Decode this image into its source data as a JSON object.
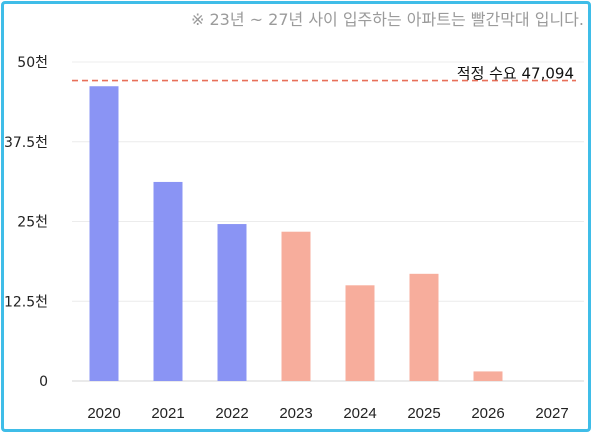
{
  "note": "※ 23년 ~ 27년 사이 입주하는 아파트는 빨간막대 입니다.",
  "chart_data": {
    "type": "bar",
    "categories": [
      "2020",
      "2021",
      "2022",
      "2023",
      "2024",
      "2025",
      "2026",
      "2027"
    ],
    "values": [
      46200,
      31200,
      24600,
      23400,
      15000,
      16800,
      1500,
      0
    ],
    "colors": [
      "#8a94f4",
      "#8a94f4",
      "#8a94f4",
      "#f7ad9c",
      "#f7ad9c",
      "#f7ad9c",
      "#f7ad9c",
      "#f7ad9c"
    ],
    "ylim": [
      0,
      50000
    ],
    "yticks": [
      0,
      12500,
      25000,
      37500,
      50000
    ],
    "ytick_labels": [
      "0",
      "12.5천",
      "25천",
      "37.5천",
      "50천"
    ],
    "grid": true,
    "reference_line": {
      "value": 47094,
      "label": "적정 수요 47,094",
      "color": "#e8705a"
    }
  }
}
